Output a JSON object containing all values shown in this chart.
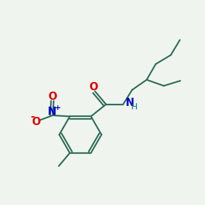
{
  "background_color": "#eff4ef",
  "bond_color": "#2d6b58",
  "atom_colors": {
    "O": "#e00000",
    "N_amide": "#0000cc",
    "N_nitro": "#0000cc",
    "H": "#007070",
    "C": "#2d6b58"
  },
  "figsize": [
    3.0,
    3.0
  ],
  "dpi": 100
}
